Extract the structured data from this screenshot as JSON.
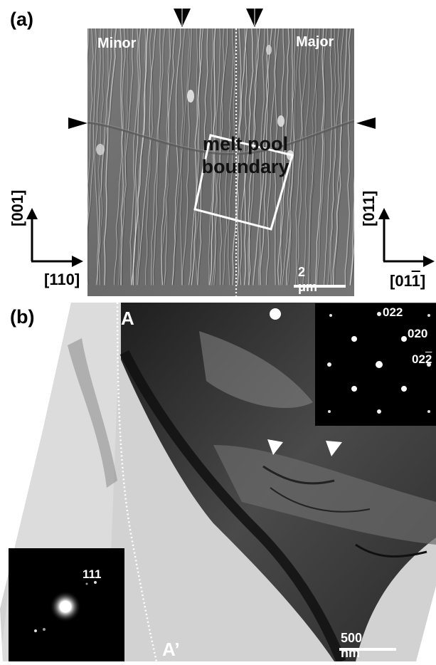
{
  "panel_a": {
    "label": "(a)",
    "minor_label": "Minor",
    "major_label": "Major",
    "melt_pool_line1": "melt pool",
    "melt_pool_line2": "boundary",
    "scale_bar": "2 μm",
    "left_axis": {
      "vertical": "[001]",
      "horizontal": "[110]"
    },
    "right_axis": {
      "vertical": "[011]",
      "horizontal_prefix": "[01",
      "horizontal_bar": "1",
      "horizontal_suffix": "]"
    }
  },
  "panel_b": {
    "label": "(b)",
    "marker_a": "A",
    "marker_a_prime": "A’",
    "scale_bar": "500 nm",
    "diffraction_top": {
      "spot_1": "022",
      "spot_2": "020",
      "spot_3_prefix": "02",
      "spot_3_bar": "2"
    },
    "diffraction_bottom": {
      "spot_1": "111"
    }
  },
  "colors": {
    "sem_background": "#6f6f6f",
    "tem_background": "#cfcfcf",
    "tem_dark": "#2a2a2a",
    "arrow": "#000000",
    "highlight_box": "#ffffff"
  }
}
